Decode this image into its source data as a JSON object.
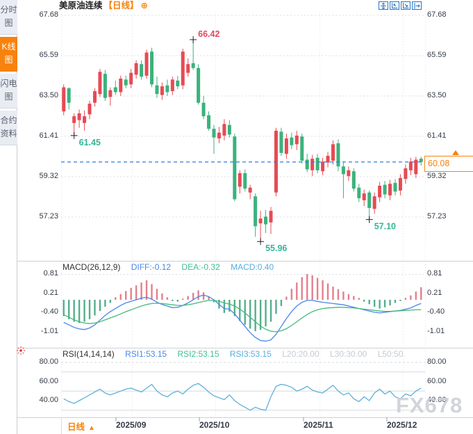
{
  "header": {
    "symbol": "美原油连续",
    "period_tag": "【日线】",
    "add_icon": "⊕",
    "toolbar_icons": [
      "move-crosshair-icon",
      "axis-zoom-left-icon",
      "axis-zoom-right-icon",
      "pan-right-icon"
    ]
  },
  "sidebar": {
    "items": [
      {
        "name": "time-chart",
        "label": "分时图",
        "active": false
      },
      {
        "name": "kline-chart",
        "label": "K线图",
        "active": true
      },
      {
        "name": "flash-chart",
        "label": "闪电图",
        "active": false
      },
      {
        "name": "contract-info",
        "label": "合约资料",
        "active": false
      }
    ]
  },
  "main_chart": {
    "y_axis_labels": [
      "67.68",
      "65.59",
      "63.50",
      "61.41",
      "59.32",
      "57.23"
    ],
    "current_price": "60.08",
    "months": [
      "2025/09",
      "2025/10",
      "2025/11",
      "2025/12"
    ],
    "period_label": "日线",
    "period_arrow": "▲"
  },
  "macd_panel": {
    "title": "MACD(26,12,9)",
    "diff_label": "DIFF:-0.12",
    "dea_label": "DEA:-0.32",
    "macd_label": "MACD:0.40",
    "y_axis_labels": [
      "0.81",
      "0.21",
      "-0.40",
      "-1.01"
    ]
  },
  "rsi_panel": {
    "title": "RSI(14,14,14)",
    "rsi1_label": "RSI1:53.15",
    "rsi2_label": "RSI2:53.15",
    "rsi3_label": "RSI3:53.15",
    "l20_label": "L20:20.00",
    "l30_label": "L30:30.00",
    "l50_label": "L50:50.",
    "y_axis_labels": [
      "80.00",
      "60.00",
      "40.00"
    ]
  },
  "watermark": "FX678",
  "colors": {
    "up": "#e64b54",
    "down": "#3bb27d",
    "hist_up": "#e2808d",
    "hist_down": "#55af8a",
    "diff_line": "#4a86e8",
    "dea_line": "#45b97c",
    "rsi_line": "#5fb0d8",
    "accent_orange": "#f7820d",
    "price_line_blue": "#2d7be0",
    "annotation_high": "#e0485a",
    "annotation_low": "#35b597",
    "axis_text": "#333b47",
    "grid": "#dcdfe5",
    "icon_blue": "#2272c3",
    "watermark_gray": "#ccd1d8"
  },
  "chart_data": {
    "type": "candlestick",
    "symbol": "美原油连续",
    "period": "日线",
    "y_axis_values": [
      67.68,
      65.59,
      63.5,
      61.41,
      59.32,
      57.23
    ],
    "month_ticks": [
      "2025/09",
      "2025/10",
      "2025/11",
      "2025/12"
    ],
    "current_price": 60.08,
    "candles_ohlc": [
      [
        62.7,
        64.1,
        62.5,
        63.95
      ],
      [
        63.9,
        63.95,
        62.8,
        63.15
      ],
      [
        62.1,
        62.6,
        61.45,
        62.45
      ],
      [
        62.25,
        62.8,
        61.85,
        62.6
      ],
      [
        62.1,
        62.75,
        61.7,
        62.45
      ],
      [
        62.55,
        63.25,
        62.3,
        63.1
      ],
      [
        63.15,
        63.9,
        62.95,
        63.75
      ],
      [
        63.6,
        64.9,
        63.45,
        64.75
      ],
      [
        64.65,
        64.85,
        63.25,
        63.4
      ],
      [
        63.45,
        63.95,
        63.0,
        63.8
      ],
      [
        63.95,
        64.3,
        63.55,
        63.7
      ],
      [
        63.7,
        64.55,
        63.5,
        64.4
      ],
      [
        64.35,
        64.55,
        63.9,
        64.05
      ],
      [
        64.1,
        64.9,
        63.9,
        64.7
      ],
      [
        64.6,
        65.35,
        64.4,
        65.2
      ],
      [
        65.15,
        65.35,
        64.35,
        64.5
      ],
      [
        64.55,
        65.9,
        64.4,
        65.75
      ],
      [
        65.8,
        66.0,
        63.95,
        64.1
      ],
      [
        64.05,
        64.5,
        63.4,
        63.6
      ],
      [
        63.55,
        64.2,
        63.3,
        64.0
      ],
      [
        64.05,
        64.35,
        63.5,
        63.7
      ],
      [
        63.75,
        64.5,
        63.55,
        64.35
      ],
      [
        64.3,
        64.55,
        63.85,
        64.0
      ],
      [
        64.05,
        65.95,
        63.85,
        65.8
      ],
      [
        64.7,
        65.45,
        64.5,
        65.15
      ],
      [
        65.2,
        66.42,
        64.85,
        64.95
      ],
      [
        64.95,
        65.15,
        63.05,
        63.15
      ],
      [
        63.15,
        63.5,
        62.3,
        62.45
      ],
      [
        62.5,
        62.7,
        61.7,
        61.8
      ],
      [
        61.8,
        62.0,
        60.5,
        61.35
      ],
      [
        61.3,
        61.9,
        61.05,
        61.6
      ],
      [
        61.45,
        62.3,
        61.2,
        62.05
      ],
      [
        62.0,
        62.25,
        61.35,
        61.5
      ],
      [
        61.4,
        61.55,
        58.05,
        58.15
      ],
      [
        58.8,
        59.65,
        58.45,
        59.5
      ],
      [
        59.5,
        59.7,
        58.55,
        58.7
      ],
      [
        58.5,
        58.9,
        58.15,
        58.75
      ],
      [
        58.3,
        58.45,
        56.2,
        56.75
      ],
      [
        56.9,
        57.55,
        55.96,
        57.15
      ],
      [
        57.25,
        57.6,
        56.4,
        56.85
      ],
      [
        56.95,
        57.75,
        56.35,
        57.55
      ],
      [
        58.5,
        61.85,
        58.3,
        61.7
      ],
      [
        61.65,
        61.85,
        60.4,
        60.55
      ],
      [
        60.5,
        61.55,
        60.25,
        61.3
      ],
      [
        61.35,
        61.6,
        60.75,
        60.95
      ],
      [
        61.0,
        61.7,
        60.7,
        61.45
      ],
      [
        61.4,
        61.55,
        60.0,
        60.15
      ],
      [
        60.2,
        60.5,
        59.55,
        59.7
      ],
      [
        59.65,
        60.45,
        59.35,
        60.25
      ],
      [
        60.3,
        60.5,
        59.5,
        59.65
      ],
      [
        59.6,
        60.3,
        59.4,
        60.1
      ],
      [
        60.05,
        60.6,
        59.8,
        60.4
      ],
      [
        60.15,
        61.2,
        59.95,
        61.0
      ],
      [
        61.05,
        61.25,
        59.6,
        59.85
      ],
      [
        59.85,
        60.05,
        58.2,
        59.45
      ],
      [
        59.35,
        59.85,
        59.1,
        59.65
      ],
      [
        59.6,
        59.75,
        58.55,
        58.7
      ],
      [
        58.75,
        58.95,
        58.0,
        58.2
      ],
      [
        58.1,
        58.65,
        57.8,
        58.45
      ],
      [
        58.5,
        58.6,
        57.1,
        57.7
      ],
      [
        57.65,
        58.5,
        57.4,
        58.3
      ],
      [
        58.25,
        59.05,
        58.0,
        58.85
      ],
      [
        58.9,
        59.1,
        58.2,
        58.4
      ],
      [
        58.35,
        59.15,
        58.1,
        58.95
      ],
      [
        59.0,
        59.2,
        58.35,
        58.55
      ],
      [
        58.6,
        59.45,
        58.35,
        59.25
      ],
      [
        59.2,
        59.95,
        58.95,
        59.75
      ],
      [
        59.65,
        60.3,
        59.4,
        60.1
      ],
      [
        59.45,
        60.35,
        59.25,
        60.2
      ],
      [
        60.25,
        60.35,
        59.9,
        60.08
      ]
    ],
    "markers": [
      {
        "index": 2,
        "at": "low",
        "label": "61.45"
      },
      {
        "index": 25,
        "at": "high",
        "label": "66.42"
      },
      {
        "index": 38,
        "at": "low",
        "label": "55.96"
      },
      {
        "index": 59,
        "at": "low",
        "label": "57.10"
      }
    ],
    "indicators": {
      "macd": {
        "params": "26,12,9",
        "diff": -0.12,
        "dea": -0.32,
        "macd": 0.4,
        "axis_values": [
          0.81,
          0.21,
          -0.4,
          -1.01
        ],
        "hist": [
          -0.52,
          -0.62,
          -0.7,
          -0.74,
          -0.7,
          -0.62,
          -0.5,
          -0.36,
          -0.22,
          -0.1,
          0.08,
          0.18,
          0.28,
          0.38,
          0.46,
          0.55,
          0.62,
          0.5,
          0.35,
          0.2,
          0.08,
          -0.04,
          -0.06,
          0.04,
          0.12,
          0.22,
          0.3,
          0.24,
          0.1,
          -0.08,
          -0.28,
          -0.42,
          -0.38,
          -0.52,
          -0.68,
          -0.8,
          -0.92,
          -1.0,
          -0.96,
          -0.85,
          -0.7,
          -0.45,
          -0.2,
          0.1,
          0.35,
          0.55,
          0.72,
          0.82,
          0.78,
          0.7,
          0.62,
          0.52,
          0.42,
          0.34,
          0.26,
          0.18,
          0.12,
          0.06,
          -0.06,
          -0.14,
          -0.22,
          -0.28,
          -0.24,
          -0.18,
          -0.1,
          -0.04,
          0.06,
          0.14,
          0.26,
          0.4
        ],
        "diff_series": [
          -0.72,
          -0.8,
          -0.88,
          -0.93,
          -0.95,
          -0.9,
          -0.8,
          -0.65,
          -0.5,
          -0.38,
          -0.28,
          -0.18,
          -0.1,
          -0.05,
          0.0,
          0.05,
          0.08,
          0.02,
          -0.08,
          -0.15,
          -0.2,
          -0.25,
          -0.24,
          -0.18,
          -0.1,
          0.0,
          0.1,
          0.15,
          0.1,
          0.0,
          -0.15,
          -0.28,
          -0.3,
          -0.45,
          -0.65,
          -0.85,
          -1.05,
          -1.2,
          -1.3,
          -1.32,
          -1.28,
          -1.1,
          -0.85,
          -0.6,
          -0.38,
          -0.2,
          -0.08,
          -0.02,
          -0.02,
          -0.05,
          -0.08,
          -0.1,
          -0.12,
          -0.14,
          -0.16,
          -0.2,
          -0.24,
          -0.28,
          -0.32,
          -0.36,
          -0.4,
          -0.42,
          -0.4,
          -0.38,
          -0.36,
          -0.34,
          -0.3,
          -0.26,
          -0.18,
          -0.12
        ],
        "dea_series": [
          -0.48,
          -0.56,
          -0.64,
          -0.7,
          -0.74,
          -0.76,
          -0.74,
          -0.7,
          -0.64,
          -0.58,
          -0.52,
          -0.45,
          -0.38,
          -0.32,
          -0.26,
          -0.2,
          -0.15,
          -0.12,
          -0.11,
          -0.12,
          -0.14,
          -0.16,
          -0.18,
          -0.18,
          -0.16,
          -0.13,
          -0.09,
          -0.05,
          -0.02,
          -0.02,
          -0.05,
          -0.1,
          -0.14,
          -0.2,
          -0.3,
          -0.42,
          -0.56,
          -0.7,
          -0.84,
          -0.94,
          -1.0,
          -1.02,
          -0.99,
          -0.92,
          -0.82,
          -0.7,
          -0.58,
          -0.47,
          -0.38,
          -0.32,
          -0.28,
          -0.26,
          -0.25,
          -0.24,
          -0.24,
          -0.25,
          -0.26,
          -0.28,
          -0.3,
          -0.32,
          -0.34,
          -0.36,
          -0.37,
          -0.37,
          -0.36,
          -0.35,
          -0.34,
          -0.33,
          -0.32,
          -0.32
        ]
      },
      "rsi": {
        "params": "14,14,14",
        "rsi1": 53.15,
        "rsi2": 53.15,
        "rsi3": 53.15,
        "levels": {
          "L20": 20.0,
          "L30": 30.0,
          "L50": 50.0
        },
        "axis_values": [
          80,
          60,
          40
        ],
        "level_lines": [
          80,
          70,
          50,
          30
        ],
        "series": [
          42,
          39,
          37,
          40,
          43,
          46,
          49,
          52,
          48,
          46,
          48,
          50,
          52,
          53,
          51,
          49,
          53,
          57,
          50,
          46,
          44,
          48,
          50,
          47,
          52,
          56,
          58,
          54,
          49,
          45,
          43,
          41,
          46,
          40,
          36,
          33,
          30,
          33,
          31,
          30,
          44,
          55,
          57,
          56,
          54,
          50,
          52,
          55,
          51,
          49,
          48,
          52,
          56,
          50,
          46,
          48,
          42,
          39,
          44,
          40,
          48,
          52,
          47,
          50,
          44,
          42,
          47,
          45,
          50,
          53.15
        ]
      }
    }
  }
}
